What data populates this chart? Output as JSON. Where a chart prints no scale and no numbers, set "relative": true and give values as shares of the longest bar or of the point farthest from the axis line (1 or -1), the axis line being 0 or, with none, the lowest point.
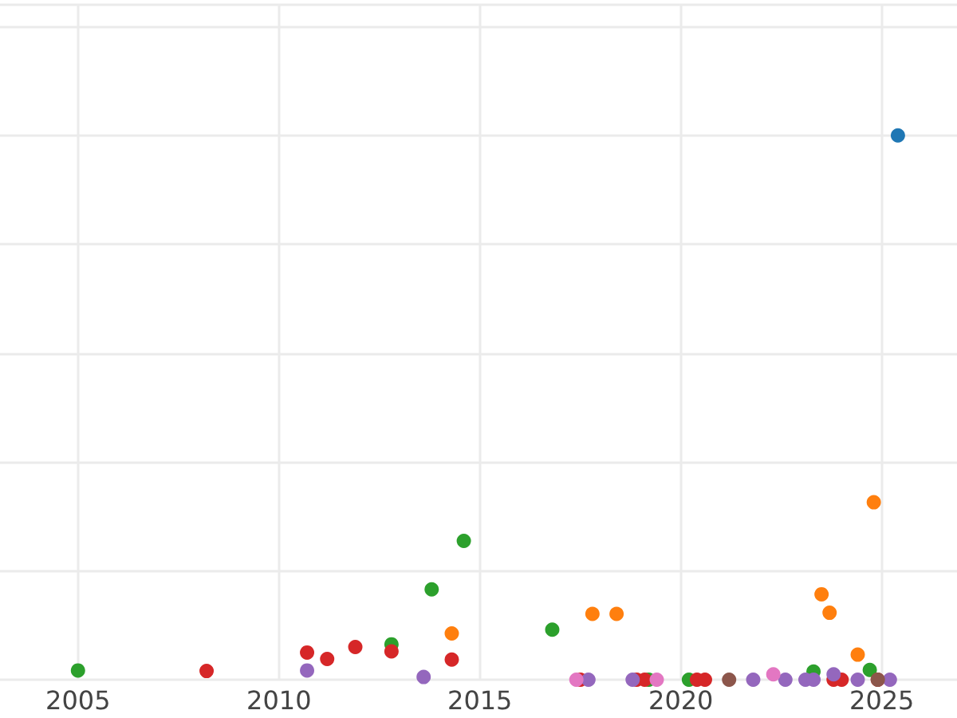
{
  "chart_data": {
    "type": "scatter",
    "relative": true,
    "marker": "circle",
    "grid": true,
    "tick_labels": "x",
    "xlim": [
      2003.06,
      2026.87
    ],
    "xticks": [
      2005,
      2010,
      2015,
      2020,
      2025
    ],
    "series": [
      {
        "color": "#1f77b4",
        "x": [
          2025.4
        ],
        "values": [
          1
        ]
      },
      {
        "color": "#ff7f0e",
        "x": [
          2014.3,
          2017.8,
          2018.4,
          2023.5,
          2023.7,
          2024.4,
          2024.8
        ],
        "values": [
          0.085,
          0.121,
          0.121,
          0.157,
          0.123,
          0.046,
          0.326
        ]
      },
      {
        "color": "#2ca02c",
        "x": [
          2005.0,
          2012.8,
          2013.8,
          2014.6,
          2016.8,
          2019.2,
          2020.2,
          2023.3,
          2024.7
        ],
        "values": [
          0.017,
          0.065,
          0.166,
          0.255,
          0.092,
          0,
          0,
          0.015,
          0.018
        ]
      },
      {
        "color": "#d62728",
        "x": [
          2008.2,
          2010.7,
          2011.2,
          2011.9,
          2012.8,
          2014.3,
          2017.5,
          2018.9,
          2019.1,
          2020.4,
          2020.6,
          2023.8,
          2024.0,
          2024.9
        ],
        "values": [
          0.016,
          0.05,
          0.038,
          0.06,
          0.052,
          0.037,
          0,
          0,
          0,
          0,
          0,
          0,
          0,
          0
        ]
      },
      {
        "color": "#9467bd",
        "x": [
          2010.7,
          2013.6,
          2017.7,
          2018.8,
          2021.8,
          2022.6,
          2023.1,
          2023.3,
          2023.8,
          2024.4,
          2025.2
        ],
        "values": [
          0.017,
          0.005,
          0,
          0,
          0,
          0,
          0,
          0,
          0.01,
          0,
          0
        ]
      },
      {
        "color": "#8c564b",
        "x": [
          2021.2,
          2024.9
        ],
        "values": [
          0,
          0
        ]
      },
      {
        "color": "#e377c2",
        "x": [
          2017.4,
          2019.4,
          2022.3
        ],
        "values": [
          0,
          0,
          0.01
        ]
      }
    ]
  }
}
